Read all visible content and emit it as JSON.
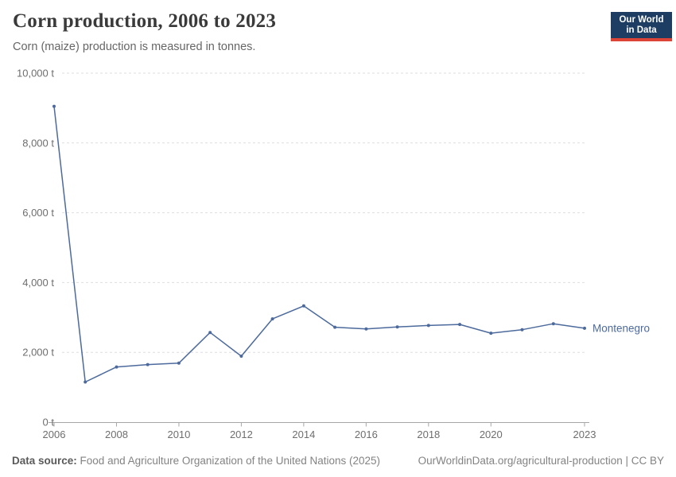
{
  "header": {
    "title": "Corn production, 2006 to 2023",
    "subtitle": "Corn (maize) production is measured in tonnes.",
    "logo": {
      "line1": "Our World",
      "line2": "in Data"
    }
  },
  "footer": {
    "datasource_label": "Data source:",
    "datasource_text": "Food and Agriculture Organization of the United Nations (2025)",
    "link_text": "OurWorldinData.org/agricultural-production | CC BY"
  },
  "colors": {
    "background": "#ffffff",
    "line": "#4C6A9C",
    "grid": "#dedede",
    "axis": "#a6a6a6",
    "tick_label": "#6e6e6e",
    "title": "#3a3a3a",
    "subtitle": "#666666",
    "footer": "#838383",
    "logo_bg": "#1d3d63",
    "logo_accent": "#dc4437"
  },
  "chart_data": {
    "type": "line",
    "title": "Corn production, 2006 to 2023",
    "subtitle": "Corn (maize) production is measured in tonnes.",
    "unit": "t",
    "x": [
      2006,
      2007,
      2008,
      2009,
      2010,
      2011,
      2012,
      2013,
      2014,
      2015,
      2016,
      2017,
      2018,
      2019,
      2020,
      2021,
      2022,
      2023
    ],
    "series": [
      {
        "name": "Montenegro",
        "values": [
          9050,
          1150,
          1580,
          1650,
          1690,
          2570,
          1890,
          2960,
          3330,
          2720,
          2670,
          2730,
          2770,
          2800,
          2550,
          2650,
          2820,
          2690
        ]
      }
    ],
    "x_ticks": [
      2006,
      2008,
      2010,
      2012,
      2014,
      2016,
      2018,
      2020,
      2023
    ],
    "y_ticks": [
      0,
      2000,
      4000,
      6000,
      8000,
      10000
    ],
    "y_tick_labels": [
      "0 t",
      "2,000 t",
      "4,000 t",
      "6,000 t",
      "8,000 t",
      "10,000 t"
    ],
    "ylim": [
      0,
      10000
    ],
    "xlim": [
      2006,
      2023
    ],
    "grid": "horizontal-dashed",
    "legend": "end-of-line label"
  }
}
